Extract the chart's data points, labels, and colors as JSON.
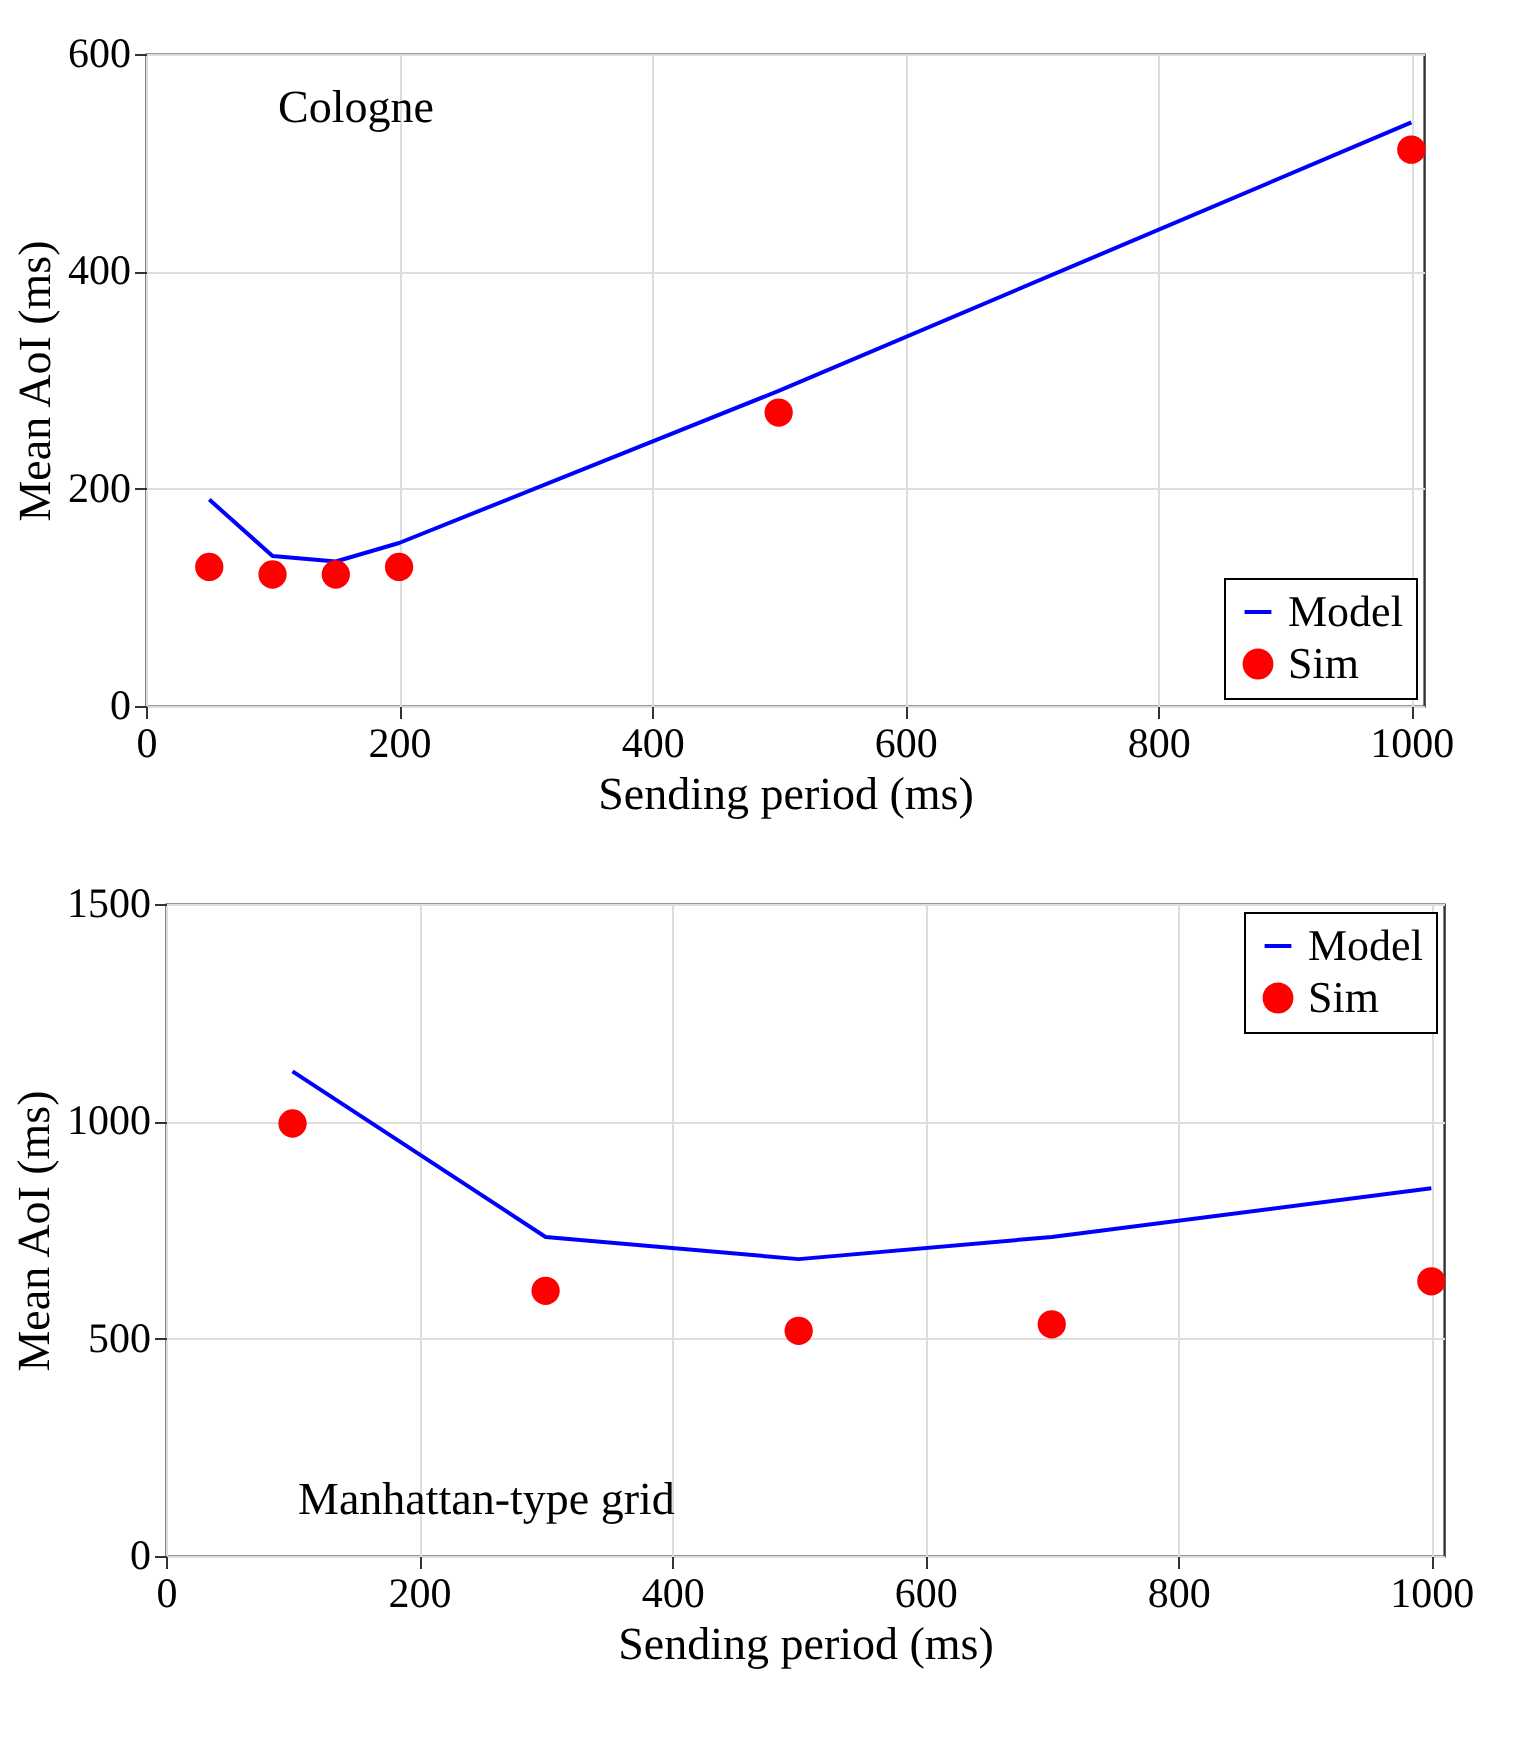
{
  "chart_data": [
    {
      "type": "line",
      "xlabel": "Sending period (ms)",
      "ylabel": "Mean AoI (ms)",
      "xlim": [
        0,
        1010
      ],
      "xticks": [
        0,
        200,
        400,
        600,
        800,
        1000
      ],
      "ylim": [
        0,
        600
      ],
      "yticks": [
        0,
        200,
        400,
        600
      ],
      "grid": true,
      "legend": "bottom right",
      "annotations": [
        "Cologne"
      ],
      "series": [
        {
          "name": "Model",
          "type": "line",
          "color": "#0000ff",
          "x": [
            50,
            100,
            150,
            200,
            500,
            1000
          ],
          "values": [
            190,
            138,
            133,
            150,
            290,
            537
          ]
        },
        {
          "name": "Sim",
          "type": "scatter",
          "marker": "circle",
          "color": "#ff0000",
          "x": [
            50,
            100,
            150,
            200,
            500,
            1000
          ],
          "values": [
            128,
            121,
            121,
            128,
            270,
            512
          ]
        }
      ]
    },
    {
      "type": "line",
      "xlabel": "Sending period (ms)",
      "ylabel": "Mean AoI (ms)",
      "xlim": [
        0,
        1010
      ],
      "xticks": [
        0,
        200,
        400,
        600,
        800,
        1000
      ],
      "ylim": [
        0,
        1500
      ],
      "yticks": [
        0,
        500,
        1000,
        1500
      ],
      "grid": true,
      "legend": "top right",
      "annotations": [
        "Manhattan-type grid"
      ],
      "series": [
        {
          "name": "Model",
          "type": "line",
          "color": "#0000ff",
          "x": [
            100,
            300,
            500,
            700,
            1000
          ],
          "values": [
            1115,
            734,
            683,
            734,
            846
          ]
        },
        {
          "name": "Sim",
          "type": "scatter",
          "marker": "circle",
          "color": "#ff0000",
          "x": [
            100,
            300,
            500,
            700,
            1000
          ],
          "values": [
            995,
            610,
            518,
            533,
            632
          ]
        }
      ]
    }
  ]
}
